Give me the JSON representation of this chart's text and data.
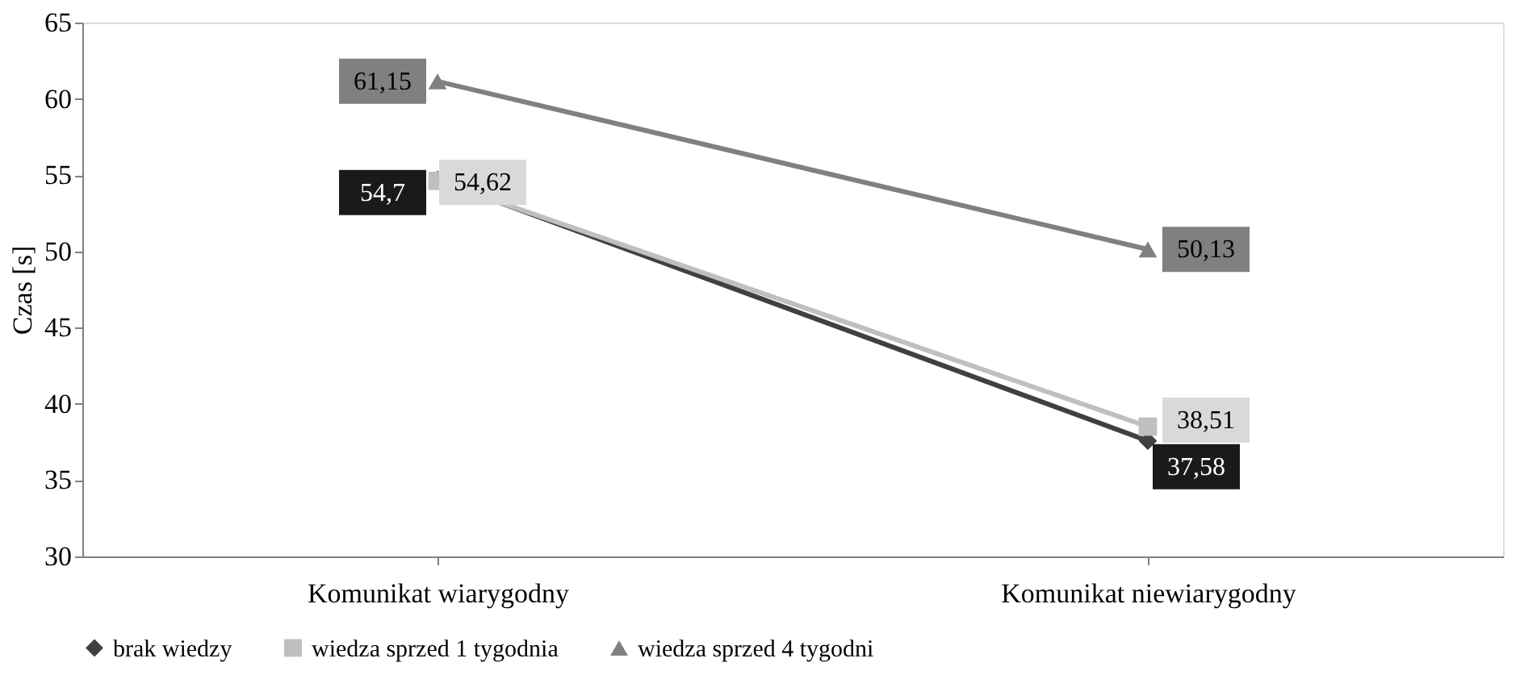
{
  "chart_data": {
    "type": "line",
    "ylabel": "Czas [s]",
    "categories": [
      "Komunikat wiarygodny",
      "Komunikat niewiarygodny"
    ],
    "series": [
      {
        "name": "brak wiedzy",
        "color": "#404040",
        "marker": "diamond",
        "values": [
          54.7,
          37.58
        ],
        "value_labels": [
          "54,7",
          "37,58"
        ]
      },
      {
        "name": "wiedza sprzed 1 tygodnia",
        "color": "#bfbfbf",
        "marker": "square",
        "values": [
          54.62,
          38.51
        ],
        "value_labels": [
          "54,62",
          "38,51"
        ]
      },
      {
        "name": "wiedza sprzed 4 tygodni",
        "color": "#808080",
        "marker": "triangle",
        "values": [
          61.15,
          50.13
        ],
        "value_labels": [
          "61,15",
          "50,13"
        ]
      }
    ],
    "ylim": [
      30,
      65
    ],
    "yticks": [
      30,
      35,
      40,
      45,
      50,
      55,
      60,
      65
    ],
    "grid": false,
    "legend": "bottom",
    "line_style": "solid"
  }
}
